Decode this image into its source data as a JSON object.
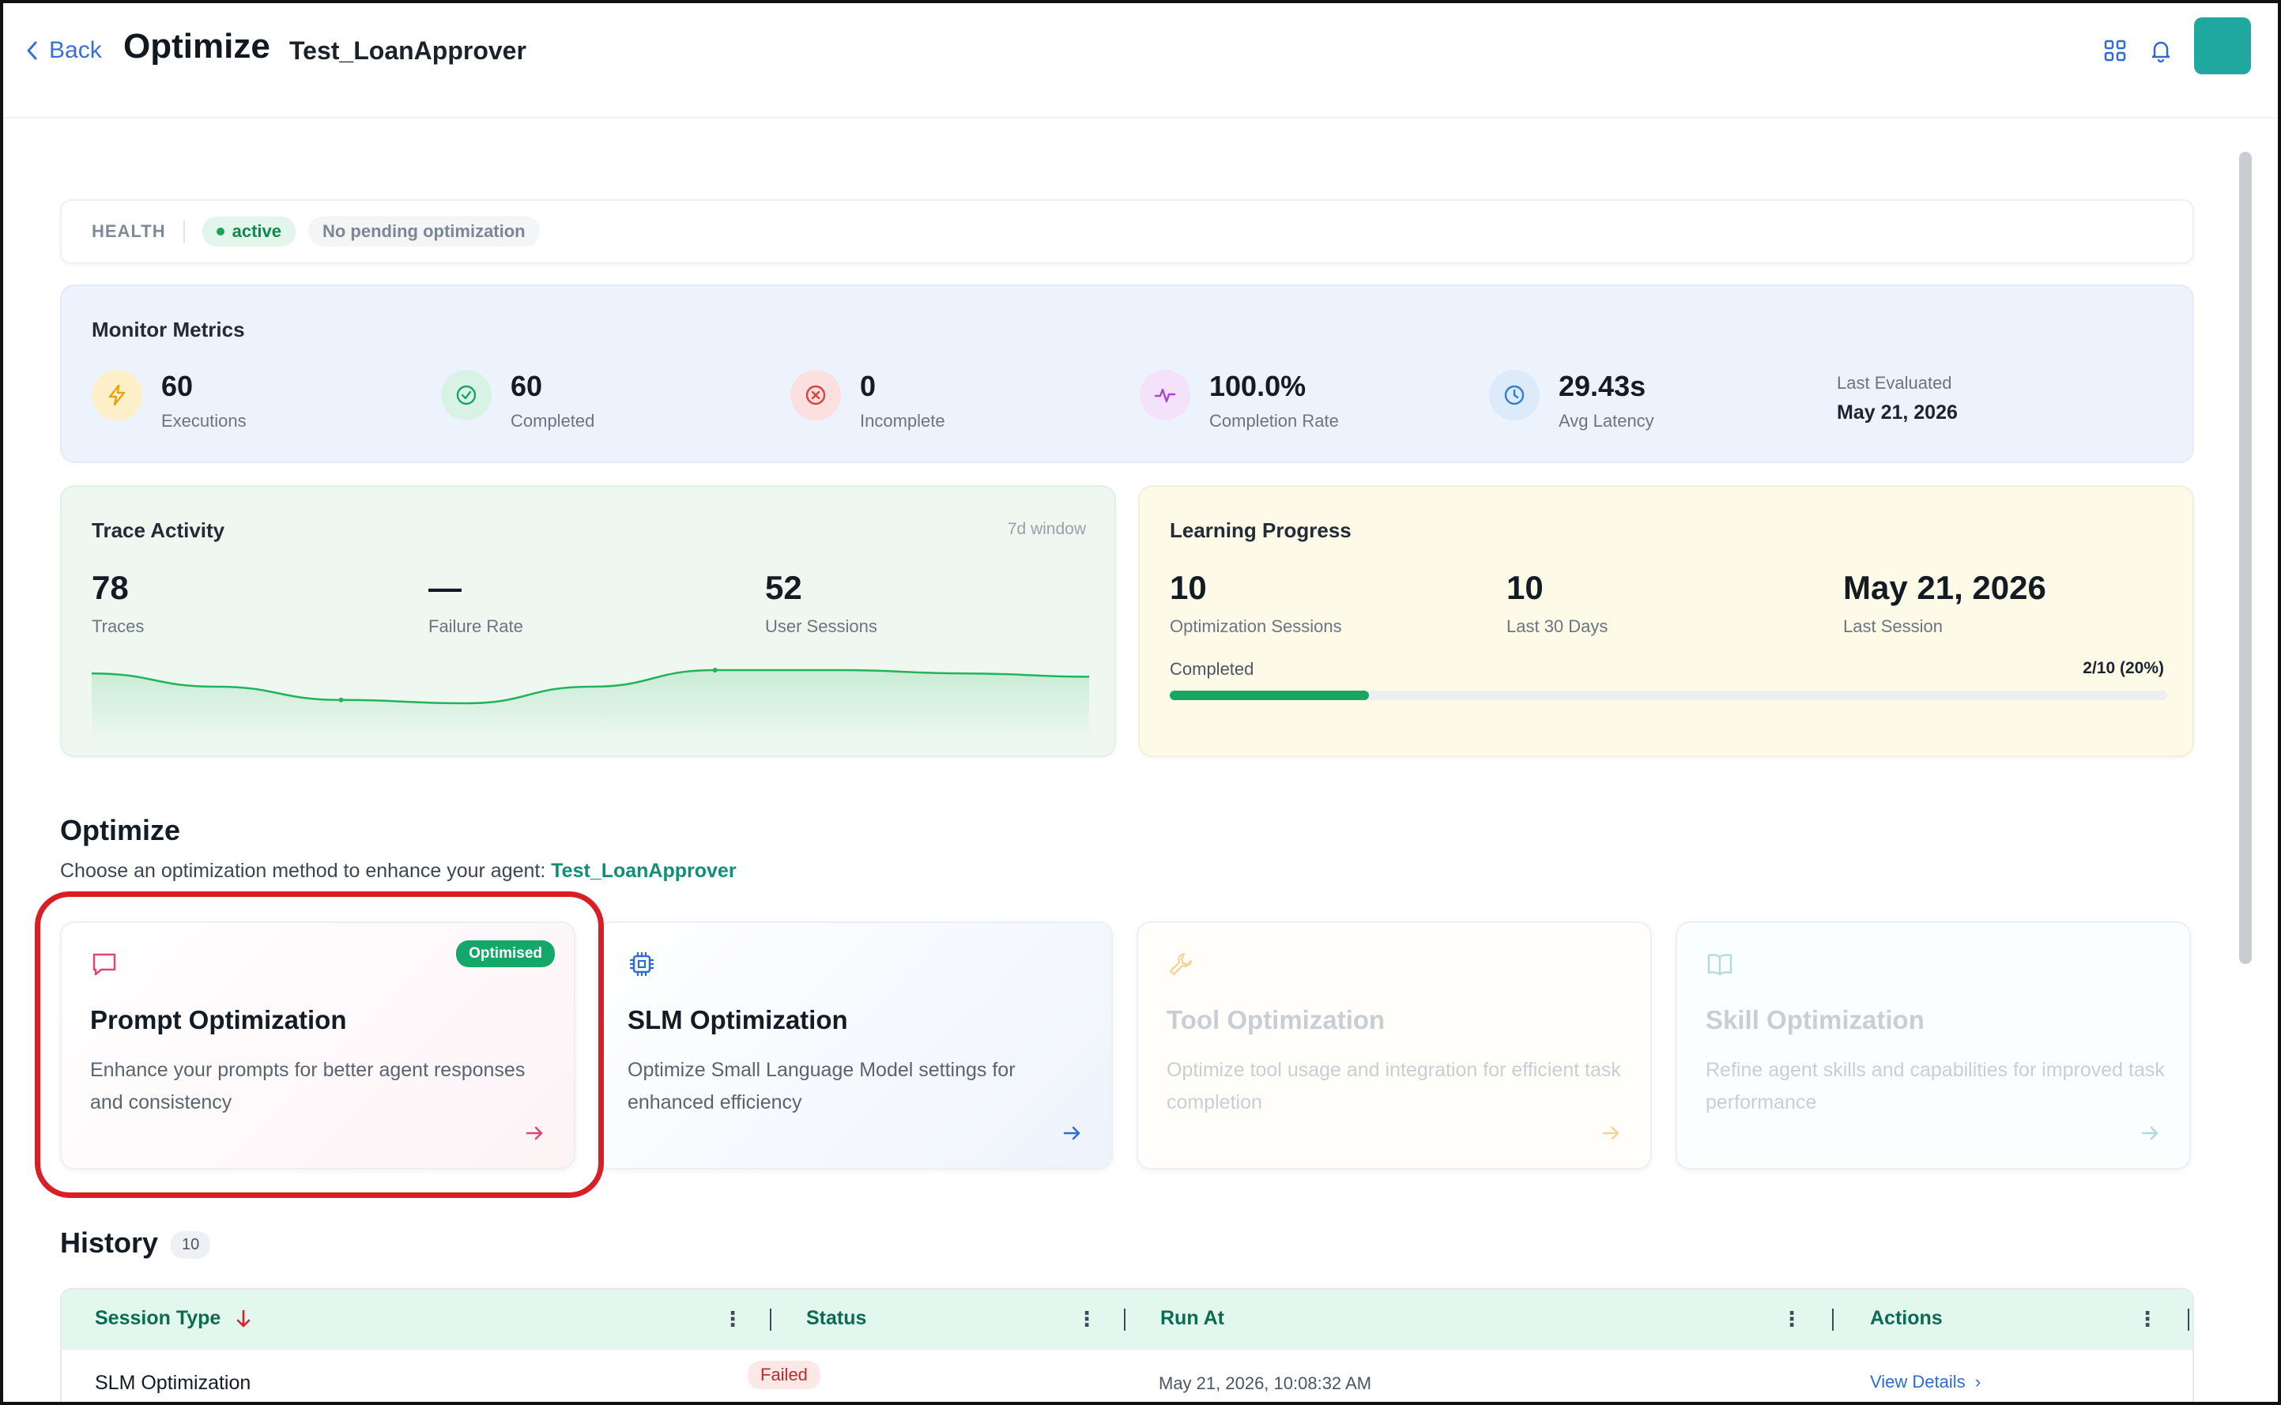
{
  "header": {
    "back_label": "Back",
    "title": "Optimize",
    "agent_name": "Test_LoanApprover",
    "icons": [
      "grid-icon",
      "bell-icon"
    ],
    "accent_color": "#1fa8a0"
  },
  "health": {
    "label": "HEALTH",
    "status": "active",
    "pending": "No pending optimization"
  },
  "monitor": {
    "title": "Monitor Metrics",
    "metrics": [
      {
        "value": "60",
        "label": "Executions",
        "icon": "lightning-icon",
        "color": "#e8a21a"
      },
      {
        "value": "60",
        "label": "Completed",
        "icon": "check-circle-icon",
        "color": "#1aa566"
      },
      {
        "value": "0",
        "label": "Incomplete",
        "icon": "x-circle-icon",
        "color": "#e0403a"
      },
      {
        "value": "100.0%",
        "label": "Completion Rate",
        "icon": "activity-icon",
        "color": "#b040d8"
      },
      {
        "value": "29.43s",
        "label": "Avg Latency",
        "icon": "clock-icon",
        "color": "#2f7fd0"
      }
    ],
    "last_evaluated_label": "Last Evaluated",
    "last_evaluated_value": "May 21, 2026"
  },
  "trace": {
    "title": "Trace Activity",
    "window": "7d window",
    "stats": [
      {
        "value": "78",
        "label": "Traces"
      },
      {
        "value": "—",
        "label": "Failure Rate"
      },
      {
        "value": "52",
        "label": "User Sessions"
      }
    ],
    "sparkline": [
      14,
      10,
      6,
      5,
      10,
      15,
      15,
      14,
      13
    ]
  },
  "learning": {
    "title": "Learning Progress",
    "stats": [
      {
        "value": "10",
        "label": "Optimization Sessions"
      },
      {
        "value": "10",
        "label": "Last 30 Days"
      },
      {
        "value": "May 21, 2026",
        "label": "Last Session"
      }
    ],
    "progress_label": "Completed",
    "progress_text": "2/10 (20%)",
    "progress_fraction": 0.2
  },
  "optimize": {
    "title": "Optimize",
    "subtitle": "Choose an optimization method to enhance your agent:",
    "agent": "Test_LoanApprover",
    "cards": [
      {
        "title": "Prompt Optimization",
        "desc": "Enhance your prompts for better agent responses and consistency",
        "badge": "Optimised",
        "icon": "chat-icon",
        "color": "#e0457a"
      },
      {
        "title": "SLM Optimization",
        "desc": "Optimize Small Language Model settings for enhanced efficiency",
        "icon": "chip-icon",
        "color": "#2f6bd6"
      },
      {
        "title": "Tool Optimization",
        "desc": "Optimize tool usage and integration for efficient task completion",
        "icon": "wrench-icon",
        "color": "#e8a21a"
      },
      {
        "title": "Skill Optimization",
        "desc": "Refine agent skills and capabilities for improved task performance",
        "icon": "book-icon",
        "color": "#4bb3b0"
      }
    ]
  },
  "history": {
    "title": "History",
    "count": "10",
    "columns": [
      "Session Type",
      "Status",
      "Run At",
      "Actions"
    ],
    "rows": [
      {
        "session_type": "SLM Optimization",
        "status": "Failed",
        "run_at": "May 21, 2026, 10:08:32 AM",
        "action": "View Details"
      }
    ]
  }
}
